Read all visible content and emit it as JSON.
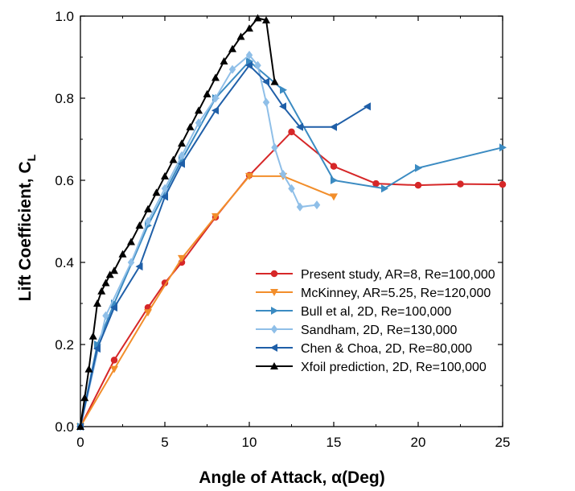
{
  "chart_data": {
    "type": "line",
    "xlabel": "Angle of Attack, α(Deg)",
    "ylabel": "Lift Coefficient, C",
    "ylabel_sub": "L",
    "xlim": [
      0,
      25
    ],
    "ylim": [
      0,
      1.0
    ],
    "xticks": [
      "0",
      "5",
      "10",
      "15",
      "20",
      "25"
    ],
    "yticks": [
      "0.0",
      "0.2",
      "0.4",
      "0.6",
      "0.8",
      "1.0"
    ],
    "legend_position": "lower-right",
    "grid": false,
    "series": [
      {
        "name": "Present study, AR=8, Re=100,000",
        "color": "#d62728",
        "marker": "circle",
        "x": [
          0,
          2,
          4,
          5,
          6,
          8,
          10,
          12.5,
          15,
          17.5,
          20,
          22.5,
          25
        ],
        "y": [
          0,
          0.162,
          0.29,
          0.35,
          0.4,
          0.51,
          0.612,
          0.718,
          0.634,
          0.592,
          0.588,
          0.591,
          0.59
        ]
      },
      {
        "name": "McKinney, AR=5.25, Re=120,000",
        "color": "#f28e2b",
        "marker": "triangle-down",
        "x": [
          0,
          2,
          4,
          6,
          8,
          10,
          12,
          15
        ],
        "y": [
          0,
          0.14,
          0.278,
          0.41,
          0.512,
          0.61,
          0.61,
          0.56
        ]
      },
      {
        "name": "Bull et al, 2D, Re=100,000",
        "color": "#3b8bc2",
        "marker": "triangle-right",
        "x": [
          0,
          1,
          2,
          4,
          6,
          8,
          10,
          12,
          15,
          18,
          20,
          25
        ],
        "y": [
          0,
          0.2,
          0.3,
          0.49,
          0.65,
          0.8,
          0.89,
          0.82,
          0.6,
          0.58,
          0.63,
          0.68
        ]
      },
      {
        "name": "Sandham, 2D, Re=130,000",
        "color": "#8fbfe8",
        "marker": "diamond",
        "x": [
          0,
          1.5,
          3,
          4,
          5,
          6,
          7,
          8,
          9,
          10,
          10.5,
          11,
          11.5,
          12,
          12.5,
          13,
          14
        ],
        "y": [
          0,
          0.27,
          0.4,
          0.5,
          0.58,
          0.66,
          0.74,
          0.8,
          0.87,
          0.905,
          0.88,
          0.79,
          0.68,
          0.615,
          0.58,
          0.535,
          0.54
        ]
      },
      {
        "name": "Chen & Choa, 2D, Re=80,000",
        "color": "#1f5fa8",
        "marker": "triangle-left",
        "x": [
          0,
          1,
          2,
          3.5,
          5,
          6,
          8,
          10,
          11,
          12,
          13,
          15,
          17
        ],
        "y": [
          0,
          0.19,
          0.29,
          0.39,
          0.56,
          0.64,
          0.77,
          0.88,
          0.84,
          0.78,
          0.73,
          0.73,
          0.78
        ]
      },
      {
        "name": "Xfoil prediction, 2D, Re=100,000",
        "color": "#000000",
        "marker": "triangle-up",
        "x": [
          0,
          0.25,
          0.5,
          0.75,
          1,
          1.25,
          1.5,
          1.75,
          2,
          2.5,
          3,
          3.5,
          4,
          4.5,
          5,
          5.5,
          6,
          6.5,
          7,
          7.5,
          8,
          8.5,
          9,
          9.5,
          10,
          10.5,
          11,
          11.5
        ],
        "y": [
          0,
          0.07,
          0.14,
          0.22,
          0.3,
          0.33,
          0.35,
          0.37,
          0.38,
          0.42,
          0.45,
          0.49,
          0.53,
          0.57,
          0.61,
          0.65,
          0.69,
          0.73,
          0.77,
          0.81,
          0.85,
          0.89,
          0.92,
          0.95,
          0.97,
          0.995,
          0.99,
          0.84
        ]
      }
    ]
  }
}
